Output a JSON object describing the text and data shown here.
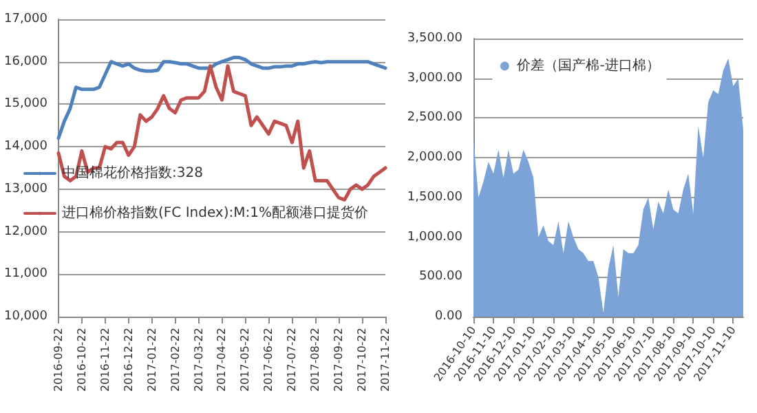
{
  "chart_data": [
    {
      "type": "line",
      "categories": [
        "2016-09-22",
        null,
        null,
        null,
        "2016-10-22",
        null,
        null,
        null,
        "2016-11-22",
        null,
        null,
        null,
        "2016-12-22",
        null,
        null,
        null,
        "2017-01-22",
        null,
        null,
        null,
        "2017-02-22",
        null,
        null,
        null,
        "2017-03-22",
        null,
        null,
        null,
        "2017-04-22",
        null,
        null,
        null,
        "2017-05-22",
        null,
        null,
        null,
        "2017-06-22",
        null,
        null,
        null,
        "2017-07-22",
        null,
        null,
        null,
        "2017-08-22",
        null,
        null,
        null,
        "2017-09-22",
        null,
        null,
        null,
        "2017-10-22",
        null,
        null,
        null,
        "2017-11-22"
      ],
      "series": [
        {
          "name": "中国棉花价格指数:328",
          "color": "#4f81bd",
          "values": [
            14200,
            14600,
            14900,
            15400,
            15350,
            15350,
            15350,
            15400,
            15700,
            16000,
            15950,
            15900,
            15950,
            15850,
            15800,
            15780,
            15780,
            15800,
            16000,
            16000,
            15980,
            15950,
            15950,
            15900,
            15850,
            15850,
            15850,
            15950,
            16000,
            16050,
            16100,
            16100,
            16050,
            15950,
            15900,
            15850,
            15850,
            15880,
            15880,
            15900,
            15900,
            15950,
            15950,
            15980,
            16000,
            15980,
            16000,
            16000,
            16000,
            16000,
            16000,
            16000,
            16000,
            16000,
            15950,
            15900,
            15850
          ]
        },
        {
          "name": "进口棉价格指数(FC Index):M:1%配额港口提货价",
          "color": "#c0504d",
          "values": [
            13850,
            13300,
            13200,
            13300,
            13900,
            13400,
            13500,
            13500,
            14000,
            13950,
            14100,
            14100,
            13800,
            14000,
            14750,
            14600,
            14700,
            14900,
            15200,
            14900,
            14800,
            15100,
            15150,
            15150,
            15150,
            15300,
            15900,
            15400,
            15100,
            15900,
            15300,
            15250,
            15200,
            14500,
            14700,
            14500,
            14300,
            14600,
            14550,
            14500,
            14100,
            14600,
            13500,
            13900,
            13200,
            13200,
            13200,
            13000,
            12800,
            12750,
            13000,
            13100,
            13000,
            13100,
            13300,
            13400,
            13500
          ]
        }
      ],
      "ylim": [
        10000,
        17000
      ],
      "yticks": [
        {
          "value": 10000,
          "label": "10,000"
        },
        {
          "value": 11000,
          "label": "11,000"
        },
        {
          "value": 12000,
          "label": "12,000"
        },
        {
          "value": 13000,
          "label": "13,000"
        },
        {
          "value": 14000,
          "label": "14,000"
        },
        {
          "value": 15000,
          "label": "15,000"
        },
        {
          "value": 16000,
          "label": "16,000"
        },
        {
          "value": 17000,
          "label": "17,000"
        }
      ],
      "grid": "y",
      "legend": "left",
      "marker": "none",
      "line_style": "solid"
    },
    {
      "type": "area",
      "categories": [
        "2016-10-10",
        null,
        null,
        null,
        "2016-11-10",
        null,
        null,
        null,
        "2016-12-10",
        null,
        null,
        null,
        "2017-01-10",
        null,
        null,
        null,
        "2017-02-10",
        null,
        null,
        null,
        "2017-03-10",
        null,
        null,
        null,
        "2017-04-10",
        null,
        null,
        null,
        "2017-05-10",
        null,
        null,
        null,
        "2017-06-10",
        null,
        null,
        null,
        "2017-07-10",
        null,
        null,
        null,
        "2017-08-10",
        null,
        null,
        null,
        "2017-09-10",
        null,
        null,
        null,
        "2017-10-10",
        null,
        null,
        null,
        "2017-11-10",
        null,
        null
      ],
      "series": [
        {
          "name": "价差（国产棉-进口棉）",
          "color": "#7ba3d8",
          "values": [
            2250,
            1500,
            1700,
            1950,
            1800,
            2100,
            1750,
            2100,
            1800,
            1850,
            2100,
            1950,
            1750,
            1000,
            1150,
            950,
            900,
            1200,
            800,
            1200,
            1000,
            850,
            800,
            700,
            700,
            500,
            50,
            600,
            900,
            250,
            850,
            800,
            800,
            900,
            1350,
            1500,
            1100,
            1450,
            1300,
            1600,
            1350,
            1300,
            1600,
            1800,
            1300,
            2400,
            2000,
            2700,
            2850,
            2800,
            3100,
            3250,
            2900,
            3000,
            2350
          ]
        }
      ],
      "ylim": [
        0,
        3500
      ],
      "yticks": [
        {
          "value": 0,
          "label": "0.00"
        },
        {
          "value": 500,
          "label": "500.00"
        },
        {
          "value": 1000,
          "label": "1,000.00"
        },
        {
          "value": 1500,
          "label": "1,500.00"
        },
        {
          "value": 2000,
          "label": "2,000.00"
        },
        {
          "value": 2500,
          "label": "2,500.00"
        },
        {
          "value": 3000,
          "label": "3,000.00"
        },
        {
          "value": 3500,
          "label": "3,500.00"
        }
      ],
      "grid": "y",
      "legend": "top",
      "marker": "none"
    }
  ]
}
